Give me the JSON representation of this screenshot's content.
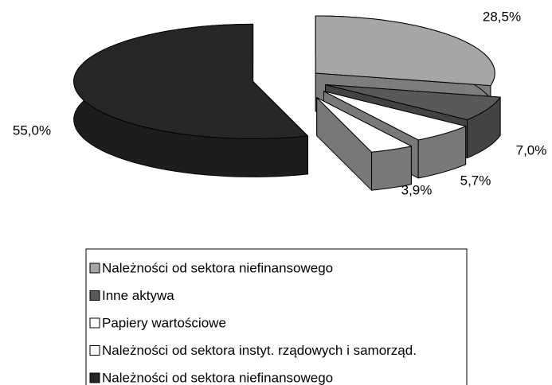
{
  "chart_data": {
    "type": "pie3d",
    "series": [
      {
        "name": "Należności od sektora niefinansowego",
        "color": "#a6a6a6",
        "values": [
          28.5
        ],
        "value_labels": [
          "28,5%"
        ]
      },
      {
        "name": "Inne aktywa",
        "color": "#595959",
        "values": [
          7.0
        ],
        "value_labels": [
          "7,0%"
        ]
      },
      {
        "name": "Papiery wartościowe",
        "color": "#ffffff",
        "values": [
          5.7
        ],
        "value_labels": [
          "5,7%"
        ]
      },
      {
        "name": "Należności od sektora instyt. rządowych i samorząd.",
        "color": "#ffffff",
        "values": [
          3.9
        ],
        "value_labels": [
          "3,9%"
        ]
      },
      {
        "name": "Należności od sektora niefinansowego",
        "color": "#262626",
        "values": [
          55.0
        ],
        "value_labels": [
          "55,0%"
        ]
      }
    ]
  }
}
